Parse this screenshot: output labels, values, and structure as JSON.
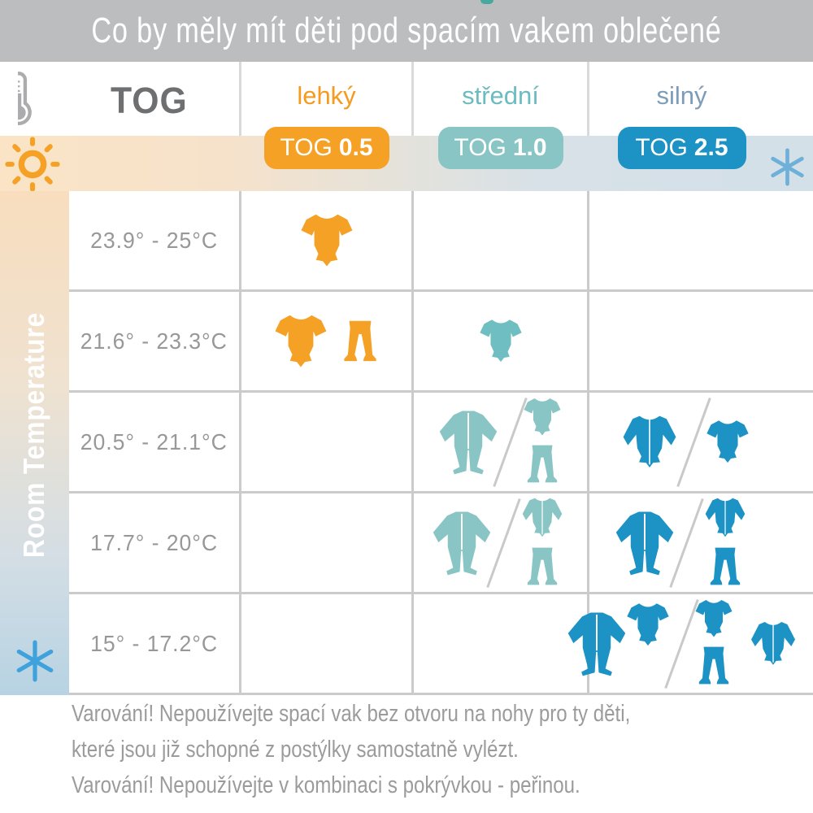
{
  "title": "Co by měly mít děti pod spacím vakem oblečené",
  "palette": {
    "titlebar_gray": "#BCBDBF",
    "orange": "#F5A125",
    "teal_medium": "#6FBEC2",
    "teal_light": "#8AC5C6",
    "blue": "#1C93C4",
    "grid_line": "#CBCBCB",
    "text_gray": "#989898",
    "band_warm": "#FBE4C6",
    "band_cool": "#D3E0E8",
    "snowflake_blue": "#3FA2DC",
    "sun_orange": "#F5A125",
    "teal_dot": "#45A99D"
  },
  "header": {
    "tog_label": "TOG",
    "columns": [
      {
        "id": "lehky",
        "label": "lehký",
        "label_color": "#F59B20",
        "pill_prefix": "TOG",
        "pill_value": "0.5",
        "pill_color": "#F5A125"
      },
      {
        "id": "stredni",
        "label": "střední",
        "label_color": "#6BBCBE",
        "pill_prefix": "TOG",
        "pill_value": "1.0",
        "pill_color": "#8AC5C6"
      },
      {
        "id": "silny",
        "label": "silný",
        "label_color": "#7C9CBA",
        "pill_prefix": "TOG",
        "pill_value": "2.5",
        "pill_color": "#1C93C4"
      }
    ]
  },
  "sidebar": {
    "label": "Room Temperature"
  },
  "rows": [
    {
      "temp": "23.9° - 25°C",
      "cells": {
        "lehky": {
          "color": "#F5A125",
          "groups": [
            [
              {
                "t": "onesie"
              }
            ]
          ]
        },
        "stredni": null,
        "silny": null
      }
    },
    {
      "temp": "21.6° - 23.3°C",
      "cells": {
        "lehky": {
          "color": "#F5A125",
          "groups": [
            [
              {
                "t": "onesie"
              },
              {
                "t": "pants"
              }
            ]
          ]
        },
        "stredni": {
          "color": "#6FBEC2",
          "groups": [
            [
              {
                "t": "onesie",
                "small": true
              }
            ]
          ]
        },
        "silny": null
      }
    },
    {
      "temp": "20.5° - 21.1°C",
      "cells": {
        "lehky": null,
        "stredni": {
          "color": "#8AC5C6",
          "groups": [
            [
              {
                "t": "sleepsuit"
              }
            ],
            [
              {
                "t": "stack",
                "items": [
                  "onesie",
                  "pants"
                ]
              }
            ]
          ]
        },
        "silny": {
          "color": "#1C93C4",
          "groups": [
            [
              {
                "t": "bodysuit"
              }
            ],
            [
              {
                "t": "onesie",
                "small": true
              }
            ]
          ]
        }
      }
    },
    {
      "temp": "17.7° - 20°C",
      "cells": {
        "lehky": null,
        "stredni": {
          "color": "#8AC5C6",
          "groups": [
            [
              {
                "t": "sleepsuit"
              }
            ],
            [
              {
                "t": "stack",
                "items": [
                  "bodysuit",
                  "pants"
                ]
              }
            ]
          ]
        },
        "silny": {
          "color": "#1C93C4",
          "groups": [
            [
              {
                "t": "sleepsuit"
              }
            ],
            [
              {
                "t": "stack",
                "items": [
                  "bodysuit",
                  "pants"
                ]
              }
            ]
          ]
        }
      }
    },
    {
      "temp": "15° - 17.2°C",
      "cells": {
        "lehky": null,
        "stredni": null,
        "silny": {
          "color": "#1C93C4",
          "groups": [
            [
              {
                "t": "sleepsuit"
              },
              {
                "t": "onesie",
                "small": true,
                "raised": true
              }
            ],
            [
              {
                "t": "stack",
                "items": [
                  "onesie",
                  "pants"
                ]
              },
              {
                "t": "bodysuit",
                "small": true
              }
            ]
          ]
        }
      }
    }
  ],
  "warnings": [
    "Varování! Nepoužívejte spací vak bez otvoru na nohy pro ty děti,",
    "které jsou již schopné z postýlky samostatně vylézt.",
    "Varování! Nepoužívejte v kombinaci s pokrývkou - peřinou."
  ]
}
